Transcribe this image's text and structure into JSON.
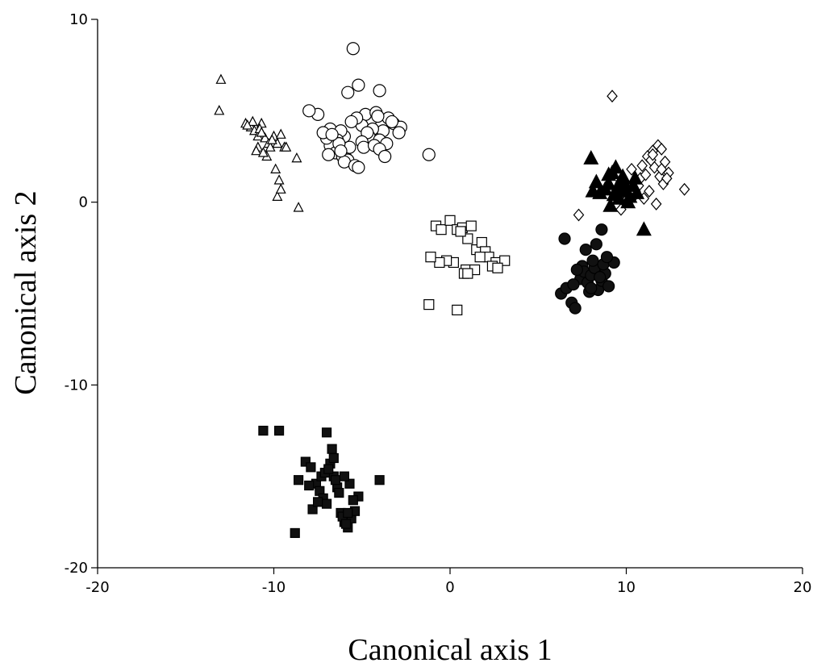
{
  "chart_data": {
    "type": "scatter",
    "title": "",
    "xlabel": "Canonical axis 1",
    "ylabel": "Canonical axis 2",
    "xlim": [
      -20,
      20
    ],
    "ylim": [
      -20,
      10
    ],
    "xticks": [
      "-20",
      "-10",
      "0",
      "10",
      "20"
    ],
    "yticks": [
      "10",
      "0",
      "-10",
      "-20"
    ],
    "grid": false,
    "legend": "none",
    "series": [
      {
        "marker": "open-triangle",
        "x": [
          -13.0,
          -13.1,
          -11.6,
          -11.3,
          -11.1,
          -10.9,
          -10.7,
          -10.5,
          -10.3,
          -10.2,
          -10.0,
          -9.8,
          -9.6,
          -9.4,
          -10.9,
          -11.0,
          -10.4,
          -10.6,
          -9.9,
          -9.7,
          -9.8,
          -9.6,
          -9.3,
          -8.7,
          -8.6,
          -11.2,
          -10.8,
          -10.1,
          -11.5,
          -10.7
        ],
        "y": [
          6.7,
          5.0,
          4.3,
          4.1,
          3.9,
          3.6,
          4.3,
          3.5,
          3.2,
          3.0,
          3.6,
          3.2,
          3.7,
          3.0,
          3.0,
          2.8,
          2.5,
          2.7,
          1.8,
          1.2,
          0.3,
          0.7,
          3.0,
          2.4,
          -0.3,
          4.4,
          4.0,
          3.4,
          4.2,
          3.8
        ]
      },
      {
        "marker": "open-circle",
        "x": [
          -5.5,
          -5.2,
          -5.8,
          -7.5,
          -8.0,
          -6.8,
          -4.0,
          -3.5,
          -4.5,
          -4.8,
          -5.0,
          -4.2,
          -3.8,
          -3.2,
          -2.8,
          -2.9,
          -4.4,
          -4.6,
          -4.0,
          -3.6,
          -3.3,
          -4.1,
          -4.7,
          -5.3,
          -5.6,
          -5.0,
          -4.9,
          -6.0,
          -6.2,
          -6.4,
          -6.6,
          -6.8,
          -7.0,
          -7.2,
          -6.5,
          -6.1,
          -5.9,
          -5.7,
          -6.3,
          -6.7,
          -6.9,
          -5.8,
          -6.0,
          -6.2,
          -5.4,
          -5.2,
          -4.3,
          -4.0,
          -3.7,
          -1.2
        ],
        "y": [
          8.4,
          6.4,
          6.0,
          4.8,
          5.0,
          4.0,
          6.1,
          4.6,
          4.5,
          4.8,
          4.2,
          4.9,
          3.9,
          4.3,
          4.1,
          3.8,
          4.0,
          3.6,
          3.4,
          3.2,
          4.4,
          4.7,
          3.8,
          4.6,
          4.4,
          3.3,
          3.0,
          3.6,
          3.9,
          3.4,
          2.9,
          3.1,
          3.5,
          3.8,
          2.7,
          2.5,
          2.4,
          3.0,
          3.2,
          3.7,
          2.6,
          2.3,
          2.2,
          2.8,
          2.0,
          1.9,
          3.1,
          2.9,
          2.5,
          2.6
        ]
      },
      {
        "marker": "open-square",
        "x": [
          -0.8,
          -0.5,
          0.0,
          0.4,
          0.7,
          1.0,
          1.2,
          1.5,
          1.8,
          2.0,
          2.2,
          2.6,
          3.1,
          0.2,
          -0.2,
          -0.6,
          0.9,
          1.4,
          0.8,
          1.7,
          2.4,
          -1.1,
          -1.2,
          0.4,
          0.6,
          2.7,
          1.0
        ],
        "y": [
          -1.3,
          -1.5,
          -1.0,
          -1.5,
          -1.4,
          -2.0,
          -1.3,
          -2.6,
          -2.2,
          -2.7,
          -3.0,
          -3.3,
          -3.2,
          -3.3,
          -3.2,
          -3.3,
          -3.7,
          -3.7,
          -3.9,
          -3.0,
          -3.5,
          -3.0,
          -5.6,
          -5.9,
          -1.6,
          -3.6,
          -3.9
        ]
      },
      {
        "marker": "open-diamond",
        "x": [
          9.2,
          7.3,
          10.3,
          10.8,
          11.2,
          11.5,
          11.8,
          12.0,
          12.2,
          12.4,
          11.9,
          11.6,
          11.4,
          11.1,
          10.7,
          10.5,
          10.0,
          9.7,
          11.0,
          11.3,
          12.1,
          12.3,
          13.3,
          11.7,
          12.0,
          10.9,
          11.5,
          10.2
        ],
        "y": [
          5.8,
          -0.7,
          1.8,
          1.3,
          2.5,
          2.8,
          3.1,
          2.9,
          2.2,
          1.6,
          1.4,
          1.9,
          2.3,
          1.5,
          0.9,
          0.4,
          0.1,
          -0.4,
          0.2,
          0.6,
          1.0,
          1.3,
          0.7,
          -0.1,
          1.8,
          2.0,
          2.6,
          0.5
        ]
      },
      {
        "marker": "filled-triangle",
        "x": [
          8.0,
          8.5,
          9.0,
          9.2,
          9.5,
          9.8,
          10.0,
          10.2,
          9.6,
          9.3,
          9.9,
          10.4,
          10.6,
          9.1,
          8.8,
          9.4,
          9.7,
          10.1,
          8.1,
          8.3,
          10.5,
          9.0,
          11.0
        ],
        "y": [
          2.4,
          0.5,
          1.0,
          1.6,
          0.8,
          1.4,
          0.6,
          0.3,
          0.2,
          0.4,
          1.0,
          0.9,
          0.5,
          -0.2,
          0.7,
          1.9,
          1.2,
          0.0,
          0.6,
          1.1,
          1.3,
          1.5,
          -1.5
        ]
      },
      {
        "marker": "filled-circle",
        "x": [
          6.5,
          7.5,
          6.3,
          6.6,
          6.9,
          7.1,
          7.4,
          7.6,
          7.8,
          8.0,
          8.2,
          8.4,
          8.6,
          8.8,
          9.0,
          8.1,
          7.9,
          7.7,
          8.3,
          8.5,
          8.7,
          9.3,
          8.9,
          7.2,
          7.0,
          8.0,
          8.6
        ],
        "y": [
          -2.0,
          -3.5,
          -5.0,
          -4.7,
          -5.5,
          -5.8,
          -4.2,
          -3.8,
          -4.4,
          -4.0,
          -3.6,
          -4.8,
          -4.3,
          -3.9,
          -4.6,
          -3.2,
          -4.9,
          -2.6,
          -2.3,
          -4.1,
          -3.4,
          -3.3,
          -3.0,
          -3.7,
          -4.5,
          -4.7,
          -1.5
        ]
      },
      {
        "marker": "filled-square",
        "x": [
          -10.6,
          -9.7,
          -7.0,
          -8.8,
          -8.6,
          -8.2,
          -7.9,
          -7.6,
          -7.4,
          -7.2,
          -7.0,
          -6.8,
          -6.6,
          -6.4,
          -6.2,
          -6.0,
          -5.8,
          -5.6,
          -5.4,
          -5.2,
          -7.8,
          -7.5,
          -7.3,
          -7.1,
          -6.9,
          -6.7,
          -6.5,
          -6.3,
          -6.1,
          -5.9,
          -5.7,
          -5.5,
          -4.0,
          -8.0,
          -6.6,
          -6.0,
          -5.8
        ],
        "y": [
          -12.5,
          -12.5,
          -12.6,
          -18.1,
          -15.2,
          -14.2,
          -14.5,
          -15.4,
          -15.8,
          -16.2,
          -16.5,
          -14.3,
          -15.0,
          -15.6,
          -17.0,
          -17.5,
          -17.8,
          -17.3,
          -16.9,
          -16.1,
          -16.8,
          -16.4,
          -15.0,
          -14.8,
          -14.6,
          -13.5,
          -15.2,
          -15.9,
          -17.2,
          -17.6,
          -15.4,
          -16.3,
          -15.2,
          -15.5,
          -14.0,
          -15.0,
          -17.0
        ]
      }
    ]
  }
}
